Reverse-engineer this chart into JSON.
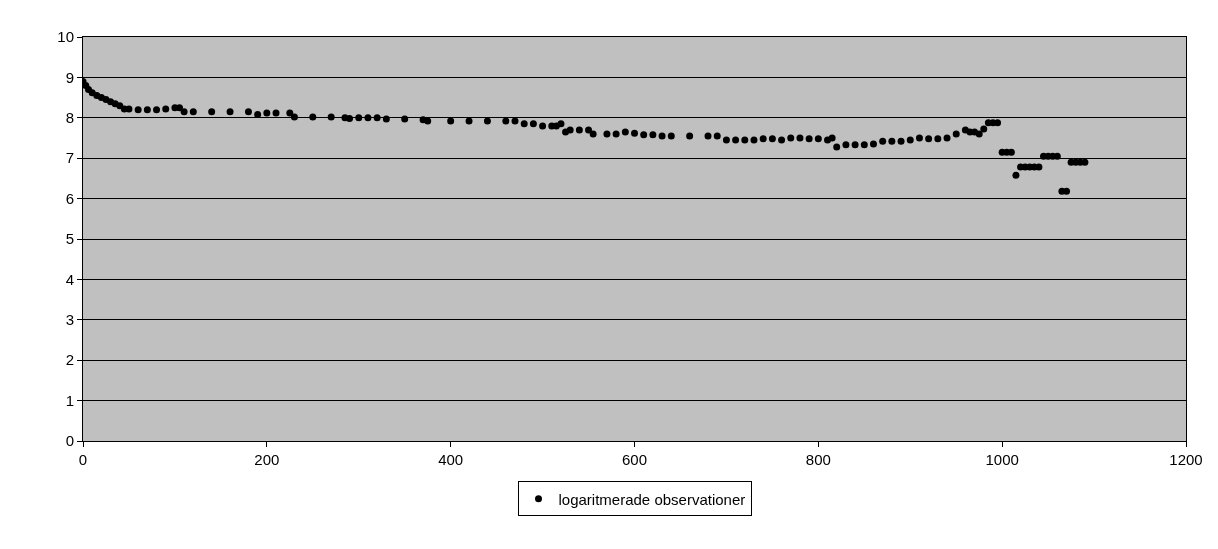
{
  "chart_data": {
    "type": "scatter",
    "x": [
      0,
      3,
      6,
      10,
      15,
      20,
      25,
      30,
      35,
      40,
      45,
      50,
      60,
      70,
      80,
      90,
      100,
      105,
      110,
      120,
      140,
      160,
      180,
      190,
      200,
      210,
      225,
      230,
      250,
      270,
      285,
      290,
      300,
      310,
      320,
      330,
      350,
      370,
      375,
      400,
      420,
      440,
      460,
      470,
      480,
      490,
      500,
      510,
      515,
      520,
      525,
      530,
      540,
      550,
      555,
      570,
      580,
      590,
      600,
      610,
      620,
      630,
      640,
      660,
      680,
      690,
      700,
      710,
      720,
      730,
      740,
      750,
      760,
      770,
      780,
      790,
      800,
      810,
      815,
      820,
      830,
      840,
      850,
      860,
      870,
      880,
      890,
      900,
      910,
      920,
      930,
      940,
      950,
      960,
      965,
      970,
      975,
      980,
      985,
      990,
      995,
      1000,
      1005,
      1010,
      1015,
      1020,
      1025,
      1030,
      1035,
      1040,
      1045,
      1050,
      1055,
      1060,
      1065,
      1070,
      1075,
      1080,
      1085,
      1090
    ],
    "series": [
      {
        "name": "logaritmerade observationer",
        "color": "#000000",
        "values": [
          8.9,
          8.8,
          8.7,
          8.62,
          8.55,
          8.5,
          8.45,
          8.4,
          8.35,
          8.3,
          8.22,
          8.22,
          8.2,
          8.2,
          8.2,
          8.22,
          8.25,
          8.25,
          8.15,
          8.15,
          8.15,
          8.15,
          8.15,
          8.08,
          8.12,
          8.12,
          8.12,
          8.02,
          8.02,
          8.02,
          8.0,
          7.98,
          8.0,
          8.0,
          8.0,
          7.97,
          7.97,
          7.95,
          7.92,
          7.92,
          7.92,
          7.92,
          7.92,
          7.92,
          7.85,
          7.85,
          7.8,
          7.8,
          7.8,
          7.85,
          7.65,
          7.7,
          7.7,
          7.7,
          7.6,
          7.6,
          7.6,
          7.65,
          7.62,
          7.58,
          7.58,
          7.55,
          7.55,
          7.55,
          7.55,
          7.55,
          7.45,
          7.45,
          7.45,
          7.45,
          7.48,
          7.48,
          7.45,
          7.5,
          7.5,
          7.48,
          7.48,
          7.45,
          7.5,
          7.28,
          7.33,
          7.33,
          7.33,
          7.35,
          7.42,
          7.42,
          7.42,
          7.45,
          7.5,
          7.48,
          7.48,
          7.5,
          7.6,
          7.7,
          7.65,
          7.65,
          7.6,
          7.72,
          7.88,
          7.88,
          7.88,
          7.15,
          7.15,
          7.15,
          6.58,
          6.78,
          6.78,
          6.78,
          6.78,
          6.78,
          7.05,
          7.05,
          7.05,
          7.05,
          6.18,
          6.18,
          6.9,
          6.9,
          6.9,
          6.9
        ]
      }
    ],
    "xlim": [
      0,
      1200
    ],
    "xticks": [
      0,
      200,
      400,
      600,
      800,
      1000,
      1200
    ],
    "ylim": [
      0,
      10
    ],
    "yticks": [
      0,
      1,
      2,
      3,
      4,
      5,
      6,
      7,
      8,
      9,
      10
    ],
    "grid": "y",
    "legend": "bottom",
    "marker": "circle"
  }
}
